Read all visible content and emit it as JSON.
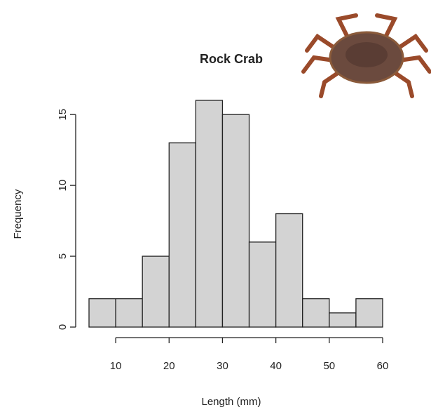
{
  "chart_data": {
    "type": "histogram",
    "title": "Rock Crab",
    "x_label": "Length (mm)",
    "y_label": "Frequency",
    "bins": [
      5,
      10,
      15,
      20,
      25,
      30,
      35,
      40,
      45,
      50,
      55,
      60
    ],
    "values": [
      2,
      2,
      5,
      13,
      16,
      15,
      6,
      8,
      2,
      1,
      2
    ],
    "color": "#d3d3d3",
    "xlim": [
      5,
      60
    ],
    "xticks": [
      10,
      20,
      30,
      40,
      50,
      60
    ],
    "ylim": [
      0,
      16
    ],
    "yticks": [
      0,
      5,
      10,
      15
    ]
  }
}
